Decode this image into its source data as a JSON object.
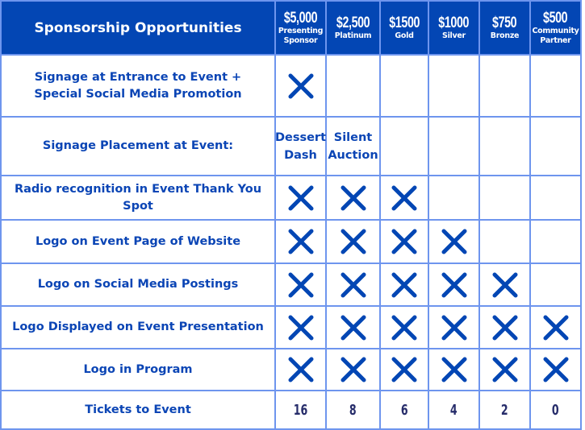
{
  "header": {
    "title": "Sponsorship Opportunities",
    "tiers": [
      {
        "price": "$5,000",
        "name": "Presenting Sponsor"
      },
      {
        "price": "$2,500",
        "name": "Platinum"
      },
      {
        "price": "$1500",
        "name": "Gold"
      },
      {
        "price": "$1000",
        "name": "Silver"
      },
      {
        "price": "$750",
        "name": "Bronze"
      },
      {
        "price": "$500",
        "name": "Community Partner"
      }
    ]
  },
  "rows": [
    {
      "feature": "Signage at Entrance to Event + Special Social Media Promotion",
      "cells": [
        "x",
        "",
        "",
        "",
        "",
        ""
      ]
    },
    {
      "feature": "Signage Placement at Event:",
      "cells": [
        "Dessert Dash",
        "Silent Auction",
        "",
        "",
        "",
        ""
      ]
    },
    {
      "feature": "Radio recognition in Event Thank You Spot",
      "cells": [
        "x",
        "x",
        "x",
        "",
        "",
        ""
      ]
    },
    {
      "feature": "Logo on Event Page of Website",
      "cells": [
        "x",
        "x",
        "x",
        "x",
        "",
        ""
      ]
    },
    {
      "feature": "Logo on Social Media Postings",
      "cells": [
        "x",
        "x",
        "x",
        "x",
        "x",
        ""
      ]
    },
    {
      "feature": "Logo Displayed on Event Presentation",
      "cells": [
        "x",
        "x",
        "x",
        "x",
        "x",
        "x"
      ]
    },
    {
      "feature": "Logo in Program",
      "cells": [
        "x",
        "x",
        "x",
        "x",
        "x",
        "x"
      ]
    }
  ],
  "tickets": {
    "feature": "Tickets to Event",
    "values": [
      "16",
      "8",
      "6",
      "4",
      "2",
      "0"
    ]
  },
  "colors": {
    "header_bg": "#0346b4",
    "grid": "#6e95ee",
    "text": "#0b45b5",
    "mark": "#0346b4",
    "numbers": "#262c6a"
  },
  "mark_icon": "x-mark-icon"
}
